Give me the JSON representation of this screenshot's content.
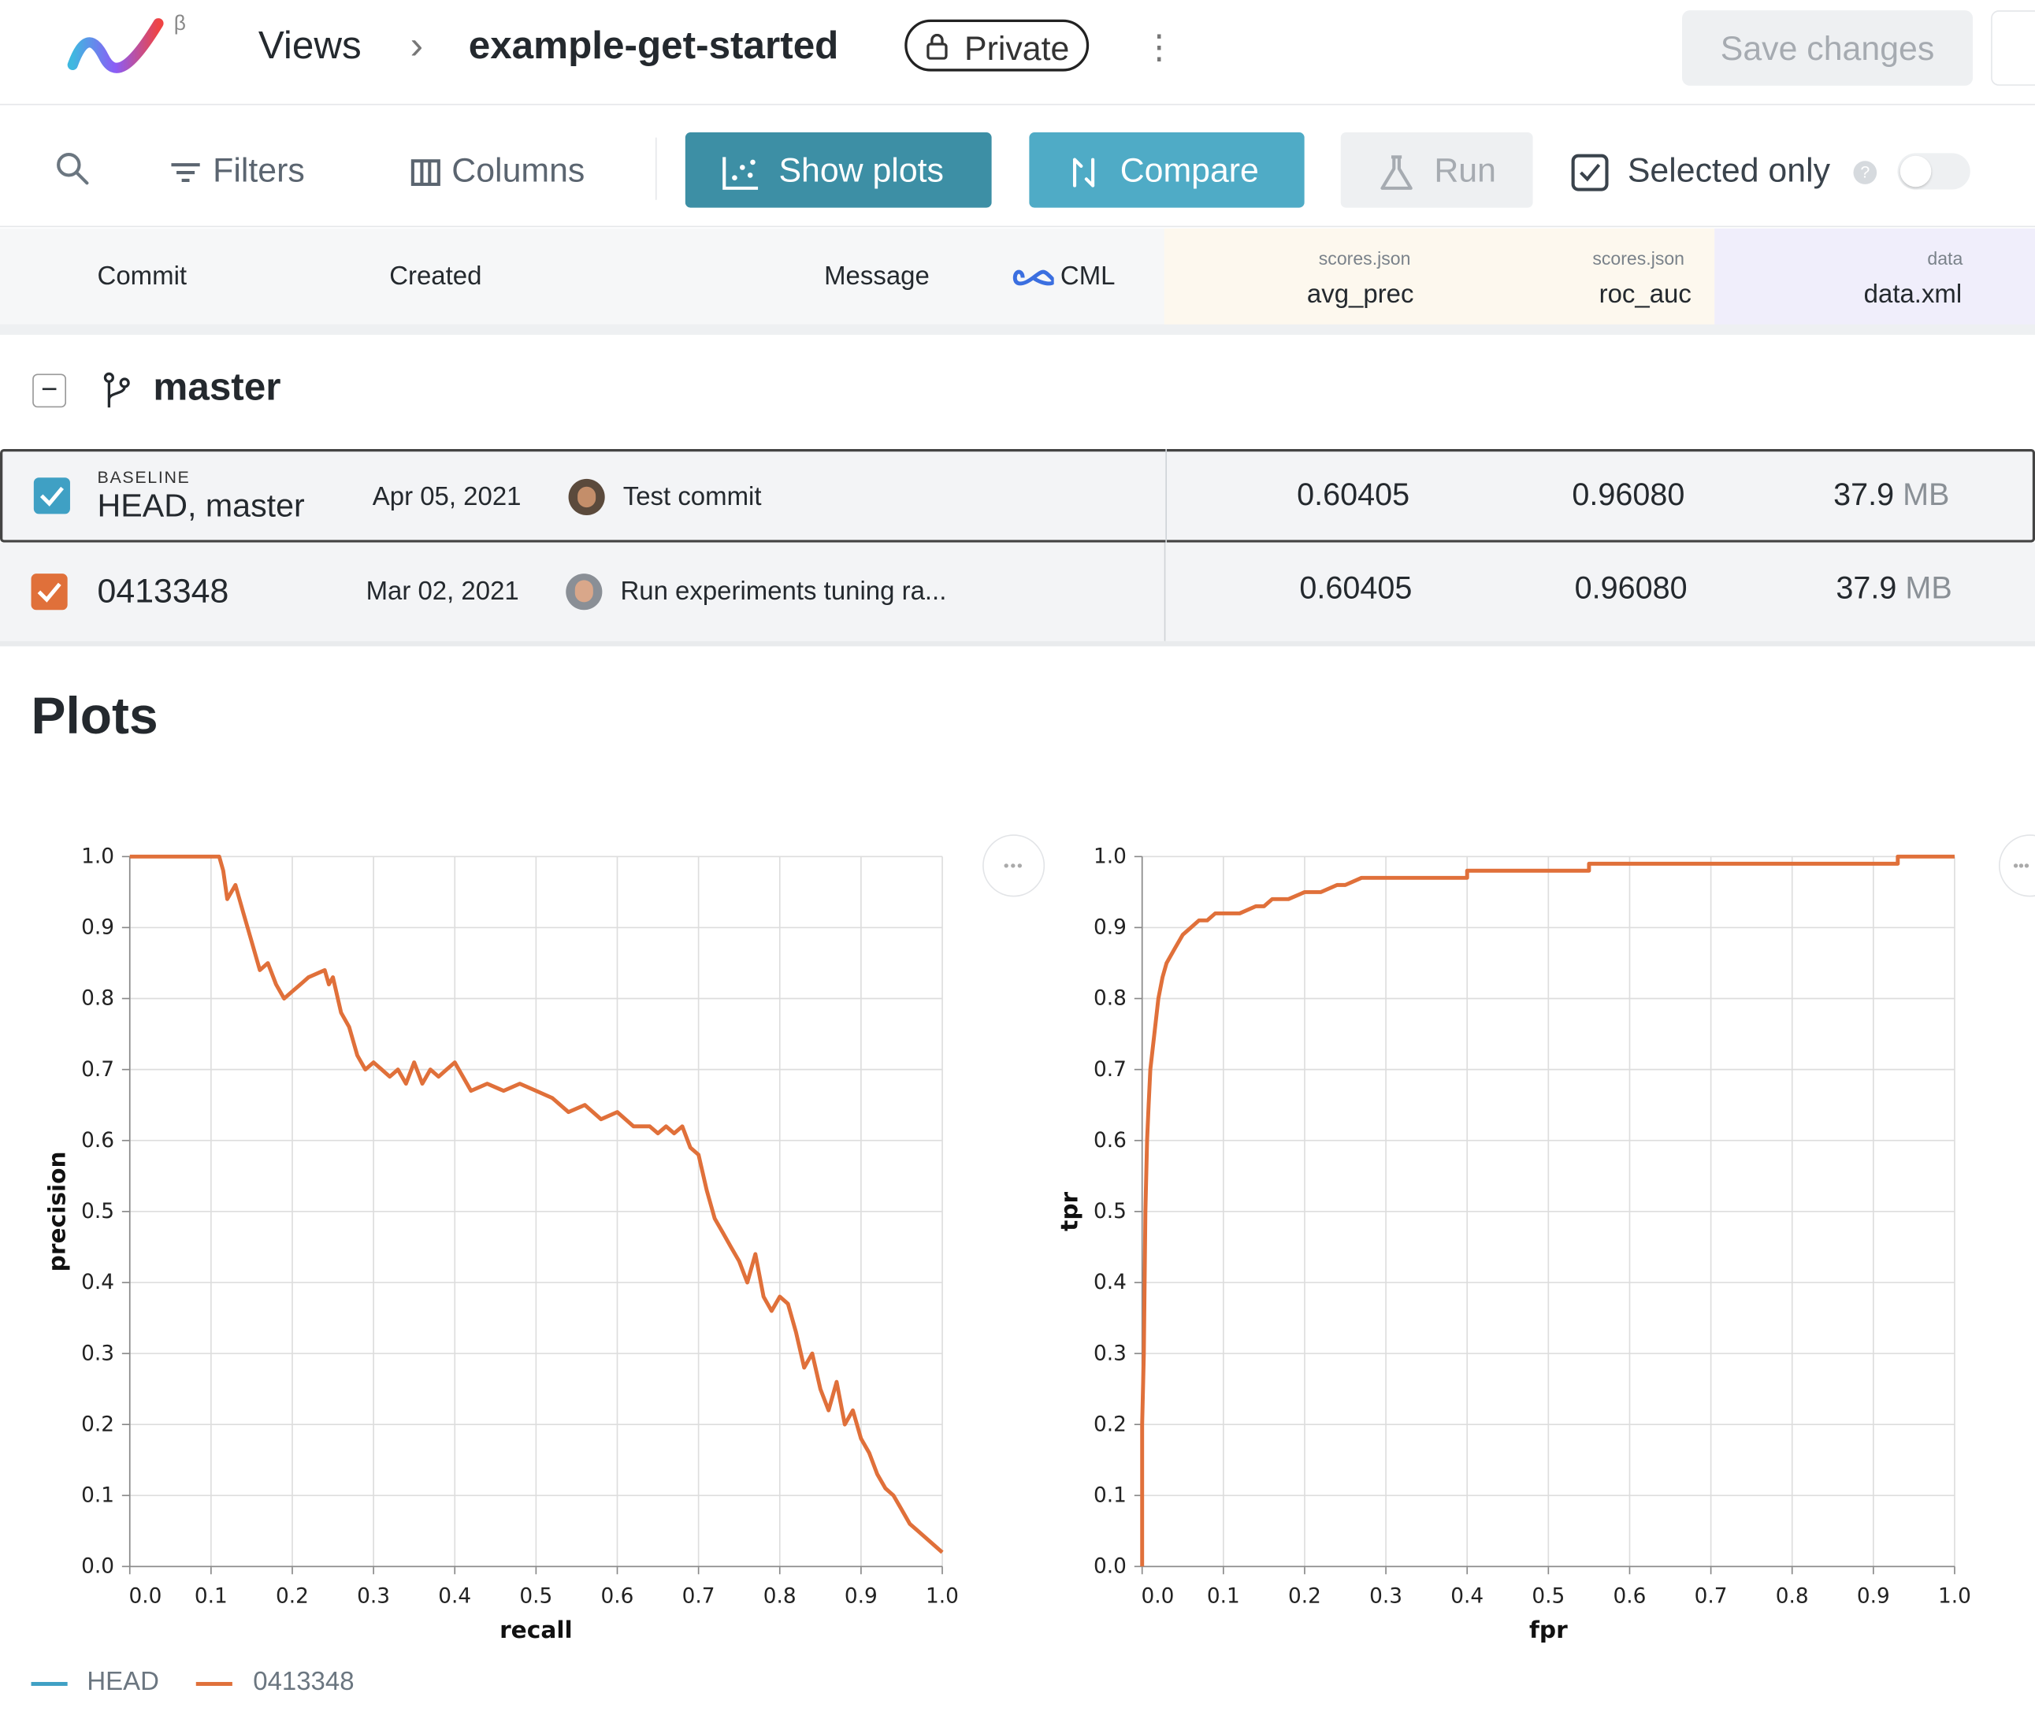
{
  "header": {
    "beta": "β",
    "views": "Views",
    "separator": "›",
    "project": "example-get-started",
    "visibility": "Private",
    "more": "⋮",
    "save_changes": "Save changes"
  },
  "toolbar": {
    "filters": "Filters",
    "columns": "Columns",
    "show_plots": "Show plots",
    "compare": "Compare",
    "run": "Run",
    "selected_only": "Selected only",
    "help": "?"
  },
  "table": {
    "headers": {
      "commit": "Commit",
      "created": "Created",
      "message": "Message",
      "cml": "CML",
      "col1_file": "scores.json",
      "col1_name": "avg_prec",
      "col2_file": "scores.json",
      "col2_name": "roc_auc",
      "col3_file": "data",
      "col3_name": "data.xml"
    },
    "branch": {
      "toggle": "−",
      "name": "master"
    },
    "rows": [
      {
        "badge": "BASELINE",
        "commit": "HEAD, master",
        "created": "Apr 05, 2021",
        "message": "Test commit",
        "avg_prec": "0.60405",
        "roc_auc": "0.96080",
        "size": "37.9",
        "unit": "MB"
      },
      {
        "badge": "",
        "commit": "0413348",
        "created": "Mar 02, 2021",
        "message": "Run experiments tuning ra...",
        "avg_prec": "0.60405",
        "roc_auc": "0.96080",
        "size": "37.9",
        "unit": "MB"
      }
    ]
  },
  "plots": {
    "title": "Plots",
    "more": "•••",
    "legend": [
      {
        "name": "HEAD",
        "color": "#3fa0c4"
      },
      {
        "name": "0413348",
        "color": "#e0703a"
      }
    ]
  },
  "colors": {
    "accent_dark": "#3d8fa5",
    "accent_light": "#4fabc6",
    "baseline_check": "#3fa0c4",
    "experiment_check": "#e0703a",
    "line": "#e0703a"
  },
  "chart_data": [
    {
      "type": "line",
      "title": "",
      "xlabel": "recall",
      "ylabel": "precision",
      "xlim": [
        0,
        1
      ],
      "ylim": [
        0,
        1
      ],
      "x_ticks": [
        "0.0",
        "0.1",
        "0.2",
        "0.3",
        "0.4",
        "0.5",
        "0.6",
        "0.7",
        "0.8",
        "0.9",
        "1.0"
      ],
      "y_ticks": [
        "0.0",
        "0.1",
        "0.2",
        "0.3",
        "0.4",
        "0.5",
        "0.6",
        "0.7",
        "0.8",
        "0.9",
        "1.0"
      ],
      "series": [
        {
          "name": "0413348",
          "color": "#e0703a",
          "x": [
            0.0,
            0.11,
            0.115,
            0.12,
            0.13,
            0.14,
            0.15,
            0.16,
            0.17,
            0.18,
            0.19,
            0.2,
            0.21,
            0.22,
            0.24,
            0.245,
            0.25,
            0.26,
            0.27,
            0.28,
            0.29,
            0.3,
            0.31,
            0.32,
            0.33,
            0.34,
            0.35,
            0.36,
            0.37,
            0.38,
            0.39,
            0.4,
            0.42,
            0.44,
            0.46,
            0.48,
            0.5,
            0.52,
            0.54,
            0.56,
            0.58,
            0.6,
            0.62,
            0.64,
            0.65,
            0.66,
            0.67,
            0.68,
            0.69,
            0.7,
            0.71,
            0.72,
            0.73,
            0.74,
            0.75,
            0.76,
            0.77,
            0.78,
            0.79,
            0.8,
            0.81,
            0.82,
            0.83,
            0.84,
            0.85,
            0.86,
            0.87,
            0.88,
            0.89,
            0.9,
            0.91,
            0.92,
            0.93,
            0.94,
            0.95,
            0.96,
            0.97,
            0.98,
            0.99,
            1.0
          ],
          "y": [
            1.0,
            1.0,
            0.98,
            0.94,
            0.96,
            0.92,
            0.88,
            0.84,
            0.85,
            0.82,
            0.8,
            0.81,
            0.82,
            0.83,
            0.84,
            0.82,
            0.83,
            0.78,
            0.76,
            0.72,
            0.7,
            0.71,
            0.7,
            0.69,
            0.7,
            0.68,
            0.71,
            0.68,
            0.7,
            0.69,
            0.7,
            0.71,
            0.67,
            0.68,
            0.67,
            0.68,
            0.67,
            0.66,
            0.64,
            0.65,
            0.63,
            0.64,
            0.62,
            0.62,
            0.61,
            0.62,
            0.61,
            0.62,
            0.59,
            0.58,
            0.53,
            0.49,
            0.47,
            0.45,
            0.43,
            0.4,
            0.44,
            0.38,
            0.36,
            0.38,
            0.37,
            0.33,
            0.28,
            0.3,
            0.25,
            0.22,
            0.26,
            0.2,
            0.22,
            0.18,
            0.16,
            0.13,
            0.11,
            0.1,
            0.08,
            0.06,
            0.05,
            0.04,
            0.03,
            0.02
          ]
        }
      ]
    },
    {
      "type": "line",
      "title": "",
      "xlabel": "fpr",
      "ylabel": "tpr",
      "xlim": [
        0,
        1
      ],
      "ylim": [
        0,
        1
      ],
      "x_ticks": [
        "0.0",
        "0.1",
        "0.2",
        "0.3",
        "0.4",
        "0.5",
        "0.6",
        "0.7",
        "0.8",
        "0.9",
        "1.0"
      ],
      "y_ticks": [
        "0.0",
        "0.1",
        "0.2",
        "0.3",
        "0.4",
        "0.5",
        "0.6",
        "0.7",
        "0.8",
        "0.9",
        "1.0"
      ],
      "series": [
        {
          "name": "0413348",
          "color": "#e0703a",
          "x": [
            0.0,
            0.0,
            0.002,
            0.004,
            0.006,
            0.008,
            0.01,
            0.015,
            0.02,
            0.025,
            0.03,
            0.04,
            0.05,
            0.06,
            0.07,
            0.08,
            0.09,
            0.1,
            0.12,
            0.14,
            0.15,
            0.16,
            0.18,
            0.2,
            0.22,
            0.24,
            0.25,
            0.27,
            0.3,
            0.35,
            0.4,
            0.4,
            0.5,
            0.55,
            0.55,
            0.7,
            0.8,
            0.9,
            0.93,
            0.93,
            0.97,
            1.0
          ],
          "y": [
            0.0,
            0.2,
            0.3,
            0.5,
            0.6,
            0.65,
            0.7,
            0.75,
            0.8,
            0.83,
            0.85,
            0.87,
            0.89,
            0.9,
            0.91,
            0.91,
            0.92,
            0.92,
            0.92,
            0.93,
            0.93,
            0.94,
            0.94,
            0.95,
            0.95,
            0.96,
            0.96,
            0.97,
            0.97,
            0.97,
            0.97,
            0.98,
            0.98,
            0.98,
            0.99,
            0.99,
            0.99,
            0.99,
            0.99,
            1.0,
            1.0,
            1.0
          ]
        }
      ]
    }
  ]
}
